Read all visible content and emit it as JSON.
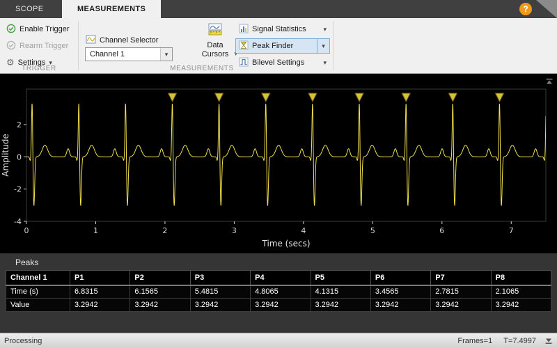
{
  "tabs": {
    "scope": "SCOPE",
    "measurements": "MEASUREMENTS",
    "help": "?"
  },
  "toolbar": {
    "trigger_section": {
      "enable_trigger": "Enable Trigger",
      "rearm_trigger": "Rearm Trigger",
      "settings": "Settings",
      "label": "TRIGGER"
    },
    "measurements_section": {
      "channel_selector_label": "Channel Selector",
      "channel_value": "Channel 1",
      "data_cursors": "Data Cursors",
      "signal_statistics": "Signal Statistics",
      "peak_finder": "Peak Finder",
      "bilevel_settings": "Bilevel Settings",
      "label": "MEASUREMENTS"
    }
  },
  "chart_data": {
    "type": "line",
    "title": "",
    "xlabel": "Time (secs)",
    "ylabel": "Amplitude",
    "xlim": [
      0,
      7.5
    ],
    "ylim": [
      -4,
      4.2
    ],
    "xticks": [
      0,
      1,
      2,
      3,
      4,
      5,
      6,
      7
    ],
    "yticks": [
      2,
      0,
      -2,
      -4
    ],
    "grid": false,
    "background": "#000000",
    "line_color": "#f2e14b",
    "series_name": "Channel 1",
    "ecg_model": {
      "first_r_time": 0.0815,
      "period": 0.675,
      "components": [
        {
          "mu": -0.155,
          "sigma": 0.02,
          "amp": 0.5
        },
        {
          "mu": -0.026,
          "sigma": 0.009,
          "amp": -0.24
        },
        {
          "mu": 0.0,
          "sigma": 0.0085,
          "amp": 3.47
        },
        {
          "mu": 0.026,
          "sigma": 0.011,
          "amp": -3.05
        },
        {
          "mu": 0.185,
          "sigma": 0.04,
          "amp": 0.72
        }
      ]
    },
    "peaks": {
      "times": [
        2.1065,
        2.7815,
        3.4565,
        4.1315,
        4.8065,
        5.4815,
        6.1565,
        6.8315
      ],
      "value": 3.2942,
      "marker_fill": "#d4c238",
      "marker_stroke": "#6e621e"
    }
  },
  "peaks_panel": {
    "title": "Peaks",
    "table": {
      "header": [
        "Channel 1",
        "P1",
        "P2",
        "P3",
        "P4",
        "P5",
        "P6",
        "P7",
        "P8"
      ],
      "rows": [
        {
          "label": "Time (s)",
          "values": [
            "6.8315",
            "6.1565",
            "5.4815",
            "4.8065",
            "4.1315",
            "3.4565",
            "2.7815",
            "2.1065"
          ]
        },
        {
          "label": "Value",
          "values": [
            "3.2942",
            "3.2942",
            "3.2942",
            "3.2942",
            "3.2942",
            "3.2942",
            "3.2942",
            "3.2942"
          ]
        }
      ]
    }
  },
  "status_bar": {
    "left": "Processing",
    "frames": "Frames=1",
    "time": "T=7.4997"
  },
  "colors": {
    "help_button": "#f09a1d",
    "selection_highlight": "#d6e5f4",
    "waveform": "#f2e14b"
  }
}
